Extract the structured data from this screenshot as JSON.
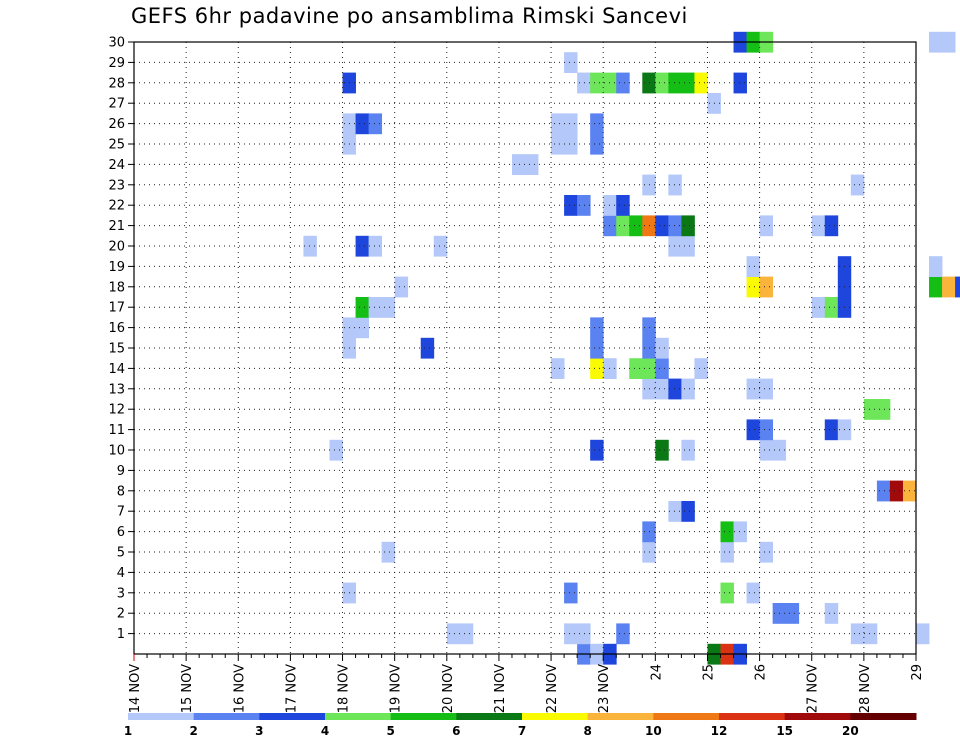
{
  "chart_data": {
    "type": "heatmap",
    "title": "GEFS 6hr padavine po ansamblima Rimski Sancevi",
    "x_ticks": [
      "14 NOV",
      "15 NOV",
      "16 NOV",
      "17 NOV",
      "18 NOV",
      "19 NOV",
      "20 NOV",
      "21 NOV",
      "22 NOV",
      "23 NOV",
      "24",
      "25",
      "26",
      "27 NOV",
      "28 NOV",
      "29"
    ],
    "xlim": [
      "14 NOV 00Z",
      "29 NOV 00Z"
    ],
    "time_step": "6hr",
    "y_ticks": [
      1,
      2,
      3,
      4,
      5,
      6,
      7,
      8,
      9,
      10,
      11,
      12,
      13,
      14,
      15,
      16,
      17,
      18,
      19,
      20,
      21,
      22,
      23,
      24,
      25,
      26,
      27,
      28,
      29,
      30
    ],
    "ylim": [
      0,
      30
    ],
    "grid": true,
    "colorbar": {
      "labels": [
        "1",
        "2",
        "3",
        "4",
        "5",
        "6",
        "7",
        "8",
        "10",
        "12",
        "15",
        "20"
      ],
      "colors": [
        "#b4c8fa",
        "#5a82f0",
        "#1e46dc",
        "#6ee65a",
        "#14be14",
        "#0a7814",
        "#fafa00",
        "#fab43c",
        "#f07814",
        "#dc3214",
        "#a00a0a",
        "#640000"
      ]
    },
    "cell_encoding": "[member, day_index, quarter_day, color_index]",
    "cells": [
      [
        0,
        23,
        0,
        1
      ],
      [
        0,
        23,
        1,
        0
      ],
      [
        0,
        23,
        2,
        2
      ],
      [
        0,
        25,
        2,
        5
      ],
      [
        0,
        25,
        3,
        9
      ],
      [
        0,
        26,
        0,
        2
      ],
      [
        1,
        20,
        2,
        0
      ],
      [
        1,
        20,
        3,
        0
      ],
      [
        1,
        22,
        3,
        0
      ],
      [
        1,
        23,
        0,
        0
      ],
      [
        1,
        23,
        3,
        1
      ],
      [
        1,
        28,
        1,
        0
      ],
      [
        1,
        28,
        2,
        0
      ],
      [
        1,
        29,
        2,
        0
      ],
      [
        2,
        26,
        3,
        1
      ],
      [
        2,
        27,
        0,
        1
      ],
      [
        2,
        27,
        3,
        0
      ],
      [
        3,
        18,
        2,
        0
      ],
      [
        3,
        22,
        3,
        1
      ],
      [
        3,
        25,
        3,
        3
      ],
      [
        3,
        26,
        1,
        0
      ],
      [
        5,
        19,
        1,
        0
      ],
      [
        5,
        24,
        1,
        0
      ],
      [
        5,
        25,
        3,
        0
      ],
      [
        5,
        26,
        2,
        0
      ],
      [
        6,
        24,
        1,
        1
      ],
      [
        6,
        25,
        3,
        4
      ],
      [
        6,
        26,
        0,
        0
      ],
      [
        7,
        24,
        3,
        0
      ],
      [
        7,
        25,
        0,
        2
      ],
      [
        8,
        28,
        3,
        1
      ],
      [
        8,
        29,
        0,
        10
      ],
      [
        8,
        29,
        1,
        7
      ],
      [
        10,
        18,
        1,
        0
      ],
      [
        10,
        23,
        1,
        2
      ],
      [
        10,
        24,
        2,
        5
      ],
      [
        10,
        25,
        0,
        0
      ],
      [
        10,
        26,
        2,
        0
      ],
      [
        10,
        26,
        3,
        0
      ],
      [
        11,
        26,
        1,
        2
      ],
      [
        11,
        26,
        2,
        1
      ],
      [
        11,
        27,
        3,
        2
      ],
      [
        11,
        28,
        0,
        0
      ],
      [
        12,
        28,
        2,
        3
      ],
      [
        12,
        28,
        3,
        3
      ],
      [
        13,
        24,
        1,
        0
      ],
      [
        13,
        24,
        2,
        0
      ],
      [
        13,
        24,
        3,
        2
      ],
      [
        13,
        25,
        0,
        0
      ],
      [
        13,
        26,
        1,
        0
      ],
      [
        13,
        26,
        2,
        0
      ],
      [
        14,
        22,
        2,
        0
      ],
      [
        14,
        23,
        1,
        6
      ],
      [
        14,
        23,
        2,
        0
      ],
      [
        14,
        24,
        0,
        3
      ],
      [
        14,
        24,
        1,
        3
      ],
      [
        14,
        24,
        2,
        1
      ],
      [
        14,
        25,
        1,
        0
      ],
      [
        15,
        18,
        2,
        0
      ],
      [
        15,
        20,
        0,
        2
      ],
      [
        15,
        23,
        1,
        1
      ],
      [
        15,
        24,
        1,
        1
      ],
      [
        15,
        24,
        2,
        0
      ],
      [
        16,
        18,
        2,
        0
      ],
      [
        16,
        18,
        3,
        0
      ],
      [
        16,
        23,
        1,
        1
      ],
      [
        16,
        24,
        1,
        1
      ],
      [
        17,
        18,
        3,
        4
      ],
      [
        17,
        19,
        0,
        0
      ],
      [
        17,
        19,
        1,
        0
      ],
      [
        17,
        27,
        2,
        0
      ],
      [
        17,
        27,
        3,
        3
      ],
      [
        17,
        28,
        0,
        2
      ],
      [
        18,
        19,
        2,
        0
      ],
      [
        18,
        26,
        1,
        6
      ],
      [
        18,
        26,
        2,
        7
      ],
      [
        18,
        28,
        0,
        2
      ],
      [
        18,
        29,
        3,
        4
      ],
      [
        18,
        30,
        0,
        7
      ],
      [
        18,
        30,
        1,
        2
      ],
      [
        19,
        26,
        1,
        0
      ],
      [
        19,
        28,
        0,
        2
      ],
      [
        19,
        29,
        3,
        0
      ],
      [
        20,
        17,
        3,
        0
      ],
      [
        20,
        18,
        3,
        2
      ],
      [
        20,
        19,
        0,
        0
      ],
      [
        20,
        20,
        1,
        0
      ],
      [
        20,
        24,
        3,
        0
      ],
      [
        20,
        25,
        0,
        0
      ],
      [
        21,
        23,
        2,
        1
      ],
      [
        21,
        23,
        3,
        3
      ],
      [
        21,
        24,
        0,
        4
      ],
      [
        21,
        24,
        1,
        8
      ],
      [
        21,
        24,
        2,
        2
      ],
      [
        21,
        24,
        3,
        1
      ],
      [
        21,
        25,
        0,
        5
      ],
      [
        21,
        26,
        2,
        0
      ],
      [
        21,
        27,
        2,
        0
      ],
      [
        21,
        27,
        3,
        2
      ],
      [
        22,
        22,
        3,
        2
      ],
      [
        22,
        23,
        0,
        1
      ],
      [
        22,
        23,
        2,
        0
      ],
      [
        22,
        23,
        3,
        2
      ],
      [
        23,
        24,
        1,
        0
      ],
      [
        23,
        24,
        3,
        0
      ],
      [
        23,
        28,
        1,
        0
      ],
      [
        24,
        21,
        3,
        0
      ],
      [
        24,
        22,
        0,
        0
      ],
      [
        25,
        18,
        2,
        0
      ],
      [
        25,
        22,
        2,
        0
      ],
      [
        25,
        22,
        3,
        0
      ],
      [
        25,
        23,
        1,
        1
      ],
      [
        26,
        18,
        2,
        0
      ],
      [
        26,
        18,
        3,
        2
      ],
      [
        26,
        19,
        0,
        1
      ],
      [
        26,
        22,
        2,
        0
      ],
      [
        26,
        22,
        3,
        0
      ],
      [
        26,
        23,
        1,
        1
      ],
      [
        27,
        25,
        2,
        0
      ],
      [
        28,
        18,
        2,
        2
      ],
      [
        28,
        23,
        0,
        0
      ],
      [
        28,
        23,
        1,
        3
      ],
      [
        28,
        23,
        2,
        3
      ],
      [
        28,
        23,
        3,
        1
      ],
      [
        28,
        24,
        1,
        5
      ],
      [
        28,
        24,
        2,
        3
      ],
      [
        28,
        24,
        3,
        4
      ],
      [
        28,
        25,
        0,
        4
      ],
      [
        28,
        25,
        1,
        6
      ],
      [
        28,
        26,
        0,
        2
      ],
      [
        29,
        22,
        3,
        0
      ],
      [
        30,
        26,
        0,
        2
      ],
      [
        30,
        26,
        1,
        4
      ],
      [
        30,
        26,
        2,
        3
      ],
      [
        30,
        29,
        3,
        0
      ],
      [
        30,
        30,
        0,
        0
      ]
    ]
  }
}
